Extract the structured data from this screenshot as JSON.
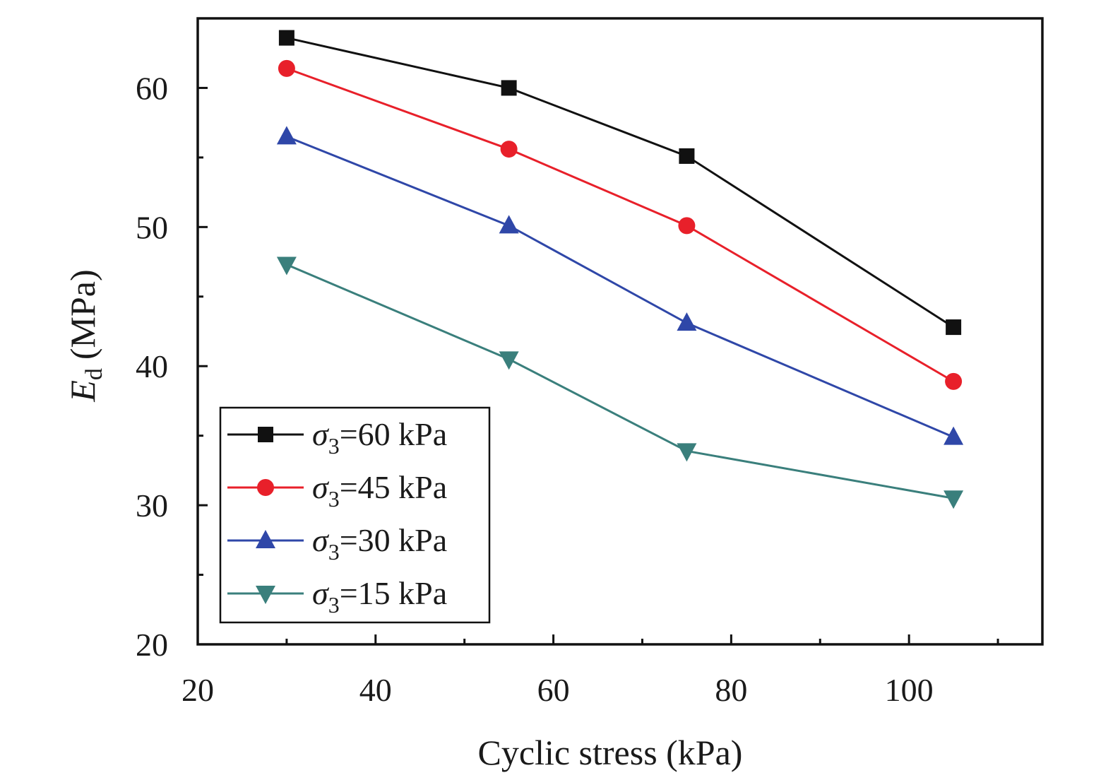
{
  "chart_data": {
    "type": "line",
    "xlabel": "Cyclic stress (kPa)",
    "ylabel": {
      "symbol": "E",
      "subscript": "d",
      "unit": "(MPa)"
    },
    "xlim": [
      20,
      115
    ],
    "ylim": [
      20,
      65
    ],
    "x_ticks": [
      20,
      40,
      60,
      80,
      100
    ],
    "x_minor_ticks": [
      30,
      50,
      70,
      90,
      110
    ],
    "y_ticks": [
      20,
      30,
      40,
      50,
      60
    ],
    "y_minor_ticks": [
      25,
      35,
      45,
      55
    ],
    "x": [
      30,
      55,
      75,
      105
    ],
    "grid": false,
    "legend_position": "bottom-left",
    "series": [
      {
        "symbol": "σ",
        "subscript": "3",
        "label": "=60 kPa",
        "color": "#111111",
        "marker": "square",
        "values": [
          63.6,
          60.0,
          55.1,
          42.8
        ]
      },
      {
        "symbol": "σ",
        "subscript": "3",
        "label": "=45 kPa",
        "color": "#e8202a",
        "marker": "circle",
        "values": [
          61.4,
          55.6,
          50.1,
          38.9
        ]
      },
      {
        "symbol": "σ",
        "subscript": "3",
        "label": "=30 kPa",
        "color": "#2f47a8",
        "marker": "triangle-up",
        "values": [
          56.5,
          50.1,
          43.1,
          34.9
        ]
      },
      {
        "symbol": "σ",
        "subscript": "3",
        "label": "=15 kPa",
        "color": "#3a7f7c",
        "marker": "triangle-down",
        "values": [
          47.3,
          40.5,
          33.9,
          30.5
        ]
      }
    ]
  }
}
